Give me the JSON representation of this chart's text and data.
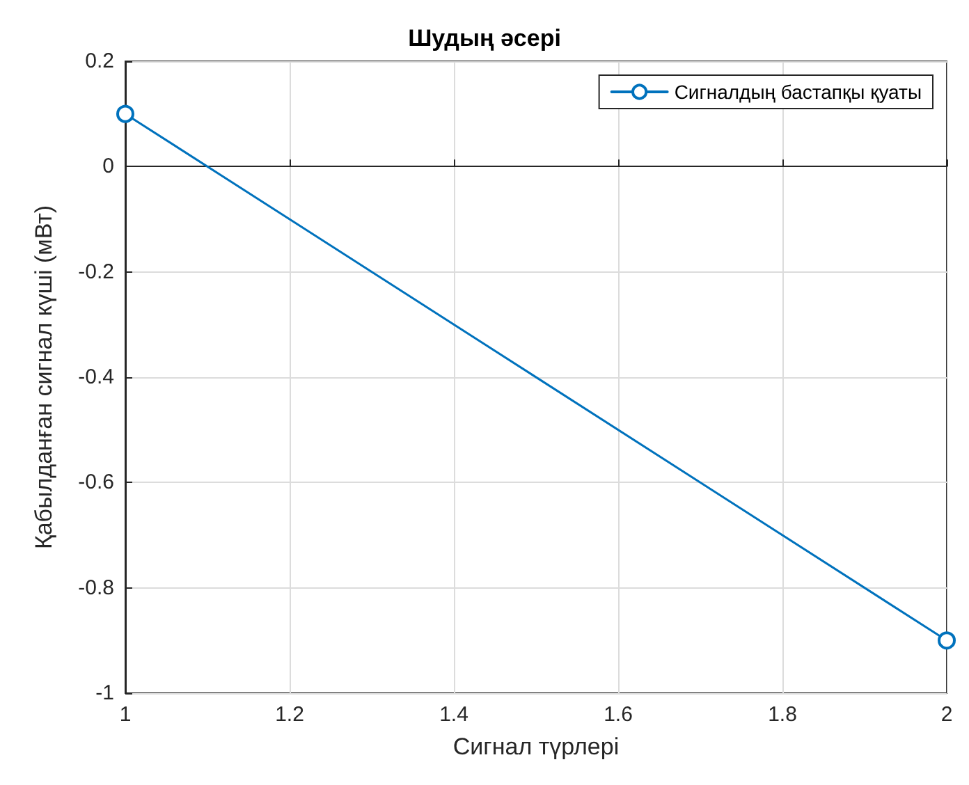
{
  "chart_data": {
    "type": "line",
    "title": "Шудың әсері",
    "xlabel": "Сигнал түрлері",
    "ylabel": "Қабылданған сигнал күші (мВт)",
    "x": [
      1,
      2
    ],
    "series": [
      {
        "name": "Сигналдың бастапқы қуаты",
        "color": "#0072bd",
        "values": [
          0.1,
          -0.9
        ]
      }
    ],
    "xlim": [
      1,
      2
    ],
    "xticks": [
      1,
      1.2,
      1.4,
      1.6,
      1.8,
      2
    ],
    "ylim": [
      -1,
      0.2
    ],
    "yticks": [
      -1,
      -0.8,
      -0.6,
      -0.4,
      -0.2,
      0,
      0.2
    ],
    "grid": true,
    "legend": "top right",
    "marker": "circle",
    "line_style": "solid"
  }
}
